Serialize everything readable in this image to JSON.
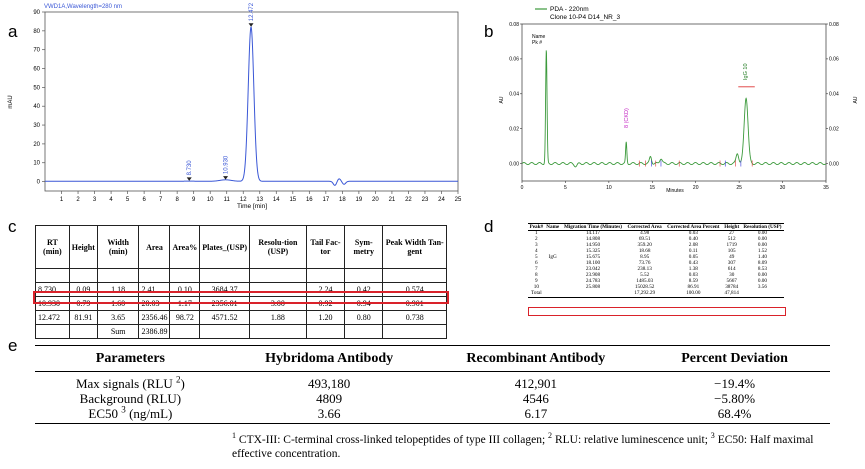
{
  "panels": {
    "a": "a",
    "b": "b",
    "c": "c",
    "d": "d",
    "e": "e"
  },
  "chart_a": {
    "type": "line",
    "title": "VWD1A,Wavelength=280 nm",
    "ylabel": "mAU",
    "xlabel": "Time [min]",
    "xlim": [
      0,
      25
    ],
    "ylim": [
      -5,
      90
    ],
    "xticks": [
      1,
      2,
      3,
      4,
      5,
      6,
      7,
      8,
      9,
      10,
      11,
      12,
      13,
      14,
      15,
      16,
      17,
      18,
      19,
      20,
      21,
      22,
      23,
      24,
      25
    ],
    "yticks": [
      0,
      10,
      20,
      30,
      40,
      50,
      60,
      70,
      80,
      90
    ],
    "peaks": [
      {
        "rt": 8.73,
        "height": 0.09,
        "label": "8.730"
      },
      {
        "rt": 10.93,
        "height": 0.79,
        "label": "10.930"
      },
      {
        "rt": 12.472,
        "height": 81.91,
        "label": "12.472"
      }
    ],
    "color": "#3a57d6"
  },
  "chart_b": {
    "type": "line",
    "legend": [
      "PDA - 220nm",
      "Clone 10-P4 D14_NR_3"
    ],
    "name_label": "Name",
    "pk_label": "Pk #",
    "ylabel": "AU",
    "xlabel": "Minutes",
    "xlim": [
      0,
      35
    ],
    "ylim": [
      -0.01,
      0.08
    ],
    "xticks": [
      "0",
      "5",
      "10",
      "15",
      "20",
      "25",
      "30",
      "35"
    ],
    "yticks": [
      "0.00",
      "0.02",
      "0.04",
      "0.06",
      "0.08"
    ],
    "peak_labels": [
      "IgG 10",
      "8 (CKD)"
    ],
    "color": "#3c9a3c"
  },
  "table_c": {
    "headers": [
      "RT (min)",
      "Height",
      "Width (min)",
      "Area",
      "Area%",
      "Plates_(USP)",
      "Resolu-tion (USP)",
      "Tail Fac-tor",
      "Sym-metry",
      "Peak Width Tan-gent"
    ],
    "rows": [
      [
        "",
        "",
        "",
        "",
        "",
        "",
        "",
        "",
        "",
        ""
      ],
      [
        "8.730",
        "0.09",
        "1.18",
        "2.41",
        "0.10",
        "3684.37",
        "",
        "2.24",
        "0.42",
        "0.574"
      ],
      [
        "10.930",
        "0.79",
        "1.60",
        "28.03",
        "1.17",
        "2356.81",
        "3.00",
        "0.92",
        "0.94",
        "0.901"
      ],
      [
        "12.472",
        "81.91",
        "3.65",
        "2356.46",
        "98.72",
        "4571.52",
        "1.88",
        "1.20",
        "0.80",
        "0.738"
      ],
      [
        "",
        "",
        "Sum",
        "2386.89",
        "",
        "",
        "",
        "",
        "",
        ""
      ]
    ]
  },
  "table_d": {
    "headers": [
      "Peak#",
      "Name",
      "Migration Time (Minutes)",
      "Corrected Area",
      "Corrected Area Percent",
      "Height",
      "Resolution (USP)"
    ],
    "name_value": "IgG",
    "rows": [
      [
        "1",
        "14.117",
        "4.98",
        "0.03",
        "27",
        "0.00"
      ],
      [
        "2",
        "14.808",
        "69.51",
        "0.40",
        "512",
        "0.00"
      ],
      [
        "3",
        "14.950",
        "359.20",
        "2.08",
        "1719",
        "0.00"
      ],
      [
        "4",
        "15.325",
        "18.68",
        "0.11",
        "105",
        "1.52"
      ],
      [
        "5",
        "15.675",
        "8.95",
        "0.05",
        "49",
        "1.40"
      ],
      [
        "6",
        "18.100",
        "73.76",
        "0.43",
        "307",
        "8.09"
      ],
      [
        "7",
        "23.042",
        "238.13",
        "1.38",
        "614",
        "8.53"
      ],
      [
        "8",
        "23.908",
        "5.52",
        "0.03",
        "30",
        "0.00"
      ],
      [
        "9",
        "24.783",
        "1485.03",
        "8.59",
        "5667",
        "0.00"
      ],
      [
        "10",
        "25.808",
        "15028.52",
        "86.91",
        "38784",
        "3.56"
      ],
      [
        "Total",
        "",
        "17,292.29",
        "100.00",
        "47,814",
        ""
      ]
    ]
  },
  "table_e": {
    "headers": [
      "Parameters",
      "Hybridoma Antibody",
      "Recombinant Antibody",
      "Percent Deviation"
    ],
    "rows": [
      {
        "param": "Max signals (RLU",
        "sup": "2",
        "param_end": ")",
        "hyb": "493,180",
        "rec": "412,901",
        "dev": "−19.4%"
      },
      {
        "param": "Background (RLU)",
        "sup": "",
        "param_end": "",
        "hyb": "4809",
        "rec": "4546",
        "dev": "−5.80%"
      },
      {
        "param": "EC50",
        "sup": "3",
        "param_end": " (ng/mL)",
        "hyb": "3.66",
        "rec": "6.17",
        "dev": "68.4%"
      }
    ],
    "footnote_1": "CTX-III: C-terminal cross-linked telopeptides of type III collagen;",
    "footnote_2": "RLU: relative luminescence unit;",
    "footnote_3": "EC50: Half maximal effective concentration.",
    "sup_1": "1",
    "sup_2": "2",
    "sup_3": "3"
  }
}
